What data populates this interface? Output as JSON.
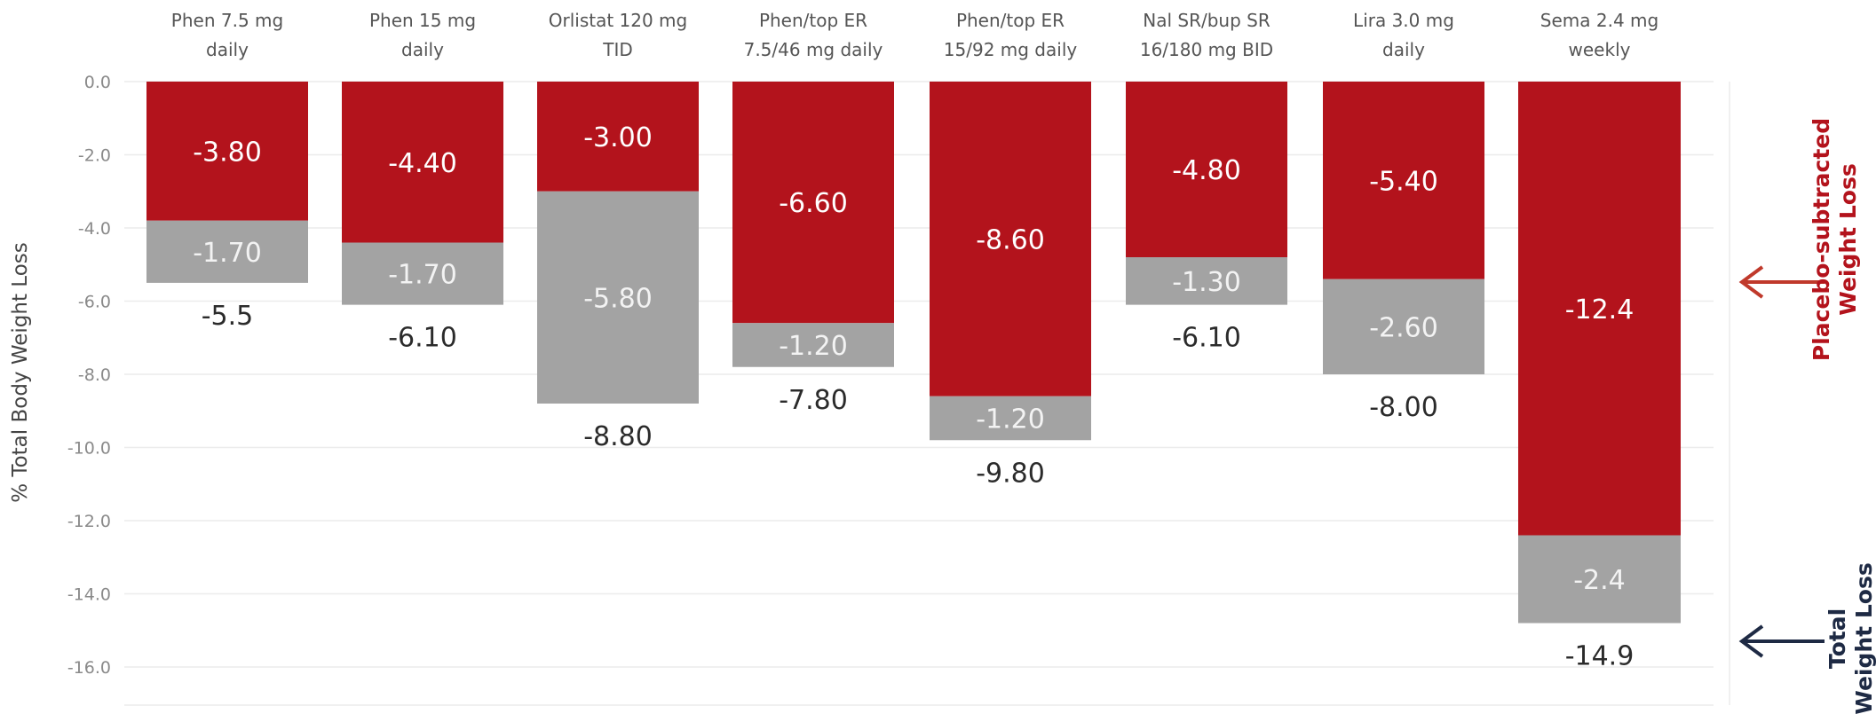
{
  "chart_data": {
    "type": "bar",
    "stacked": true,
    "ylabel": "% Total Body Weight Loss",
    "ylim": [
      -16,
      0
    ],
    "yticks": [
      "0.0",
      "-2.0",
      "-4.0",
      "-6.0",
      "-8.0",
      "-10.0",
      "-12.0",
      "-14.0",
      "-16.0"
    ],
    "grid": true,
    "categories": [
      [
        "Phen 7.5 mg",
        "daily"
      ],
      [
        "Phen 15 mg",
        "daily"
      ],
      [
        "Orlistat 120 mg",
        "TID"
      ],
      [
        "Phen/top ER",
        "7.5/46 mg daily"
      ],
      [
        "Phen/top ER",
        "15/92 mg daily"
      ],
      [
        "Nal SR/bup SR",
        "16/180 mg BID"
      ],
      [
        "Lira 3.0 mg",
        "daily"
      ],
      [
        "Sema 2.4 mg",
        "weekly"
      ]
    ],
    "placebo_subtracted": [
      -3.8,
      -4.4,
      -3.0,
      -6.6,
      -8.6,
      -4.8,
      -5.4,
      -12.4
    ],
    "placebo": [
      -1.7,
      -1.7,
      -5.8,
      -1.2,
      -1.2,
      -1.3,
      -2.6,
      -2.4
    ],
    "total": [
      -5.5,
      -6.1,
      -8.8,
      -7.8,
      -9.8,
      -6.1,
      -8.0,
      -14.9
    ],
    "placebo_subtracted_labels": [
      "-3.80",
      "-4.40",
      "-3.00",
      "-6.60",
      "-8.60",
      "-4.80",
      "-5.40",
      "-12.4"
    ],
    "placebo_labels": [
      "-1.70",
      "-1.70",
      "-5.80",
      "-1.20",
      "-1.20",
      "-1.30",
      "-2.60",
      "-2.4"
    ],
    "total_labels": [
      "-5.5",
      "-6.10",
      "-8.80",
      "-7.80",
      "-9.80",
      "-6.10",
      "-8.00",
      "-14.9"
    ],
    "legend": {
      "placebo_subtracted": [
        "Placebo-subtracted",
        "Weight Loss"
      ],
      "total": [
        "Total",
        "Weight Loss"
      ]
    },
    "colors": {
      "placebo_subtracted": "#b3131c",
      "placebo": "#a3a3a3",
      "grid": "#ececec",
      "arrow_red": "#c0392b",
      "arrow_navy": "#1e2a44"
    }
  }
}
